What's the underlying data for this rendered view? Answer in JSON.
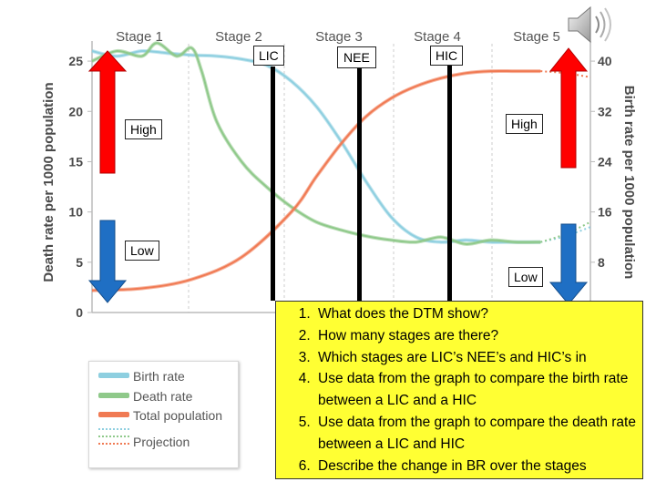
{
  "chart_data": {
    "type": "line",
    "stages": [
      "Stage 1",
      "Stage 2",
      "Stage 3",
      "Stage 4",
      "Stage 5"
    ],
    "left_axis": {
      "title": "Death rate per 1000 population",
      "ticks": [
        0,
        5,
        10,
        15,
        20,
        25
      ],
      "range": [
        0,
        27
      ]
    },
    "right_axis": {
      "title": "Birth rate per 1000 population",
      "ticks": [
        8,
        16,
        24,
        32,
        40
      ],
      "range": [
        0,
        43.2
      ]
    },
    "x_range": [
      0,
      100
    ],
    "series": [
      {
        "name": "Birth rate",
        "color": "#8ecfe0",
        "axis": "left",
        "x": [
          0,
          5,
          10,
          15,
          20,
          25,
          30,
          35,
          40,
          45,
          50,
          55,
          60,
          65,
          70,
          75,
          80,
          85,
          90
        ],
        "y": [
          26,
          25.5,
          26,
          25.8,
          25.6,
          25.5,
          25.2,
          24.6,
          23.0,
          20.5,
          17.0,
          13.0,
          9.5,
          7.5,
          7.0,
          7.2,
          7.0,
          7.0,
          7.0
        ]
      },
      {
        "name": "Death rate",
        "color": "#8fc98a",
        "axis": "left",
        "x": [
          0,
          5,
          10,
          13,
          17,
          20,
          22,
          25,
          30,
          35,
          40,
          45,
          50,
          55,
          60,
          65,
          70,
          75,
          80,
          85,
          90
        ],
        "y": [
          25,
          26,
          25.5,
          26.8,
          25.5,
          26.3,
          24.0,
          19.0,
          15.0,
          12.5,
          10.5,
          9.0,
          8.2,
          7.6,
          7.2,
          7.0,
          7.5,
          6.8,
          7.2,
          7.0,
          7.0
        ]
      },
      {
        "name": "Total population",
        "color": "#f07a53",
        "axis": "left",
        "x": [
          0,
          10,
          20,
          30,
          40,
          45,
          50,
          55,
          60,
          65,
          70,
          75,
          80,
          85,
          90
        ],
        "y": [
          2.2,
          2.4,
          3.3,
          5.5,
          10.0,
          13.5,
          16.8,
          19.5,
          21.3,
          22.5,
          23.3,
          23.8,
          24.0,
          24.0,
          24.0
        ]
      }
    ],
    "projection": {
      "x": [
        90,
        95,
        100
      ],
      "birth_rate": [
        7.0,
        7.6,
        8.5
      ],
      "death_rate": [
        7.0,
        7.8,
        9.0
      ],
      "total_population": [
        24.0,
        23.8,
        23.4
      ]
    },
    "legend": {
      "placement": "bottom-left",
      "items": [
        "Birth rate",
        "Death rate",
        "Total population",
        "Projection"
      ]
    }
  },
  "annotations": {
    "bar_labels": [
      "LIC",
      "NEE",
      "HIC"
    ],
    "high_left": "High",
    "low_left": "Low",
    "high_right": "High",
    "low_right": "Low"
  },
  "questions": [
    "What does the DTM show?",
    "How many stages are there?",
    "Which stages are LIC’s NEE’s and HIC’s in",
    "Use data from the graph to compare the birth rate between a LIC and a HIC",
    "Use data from the graph to compare the death rate between a LIC and HIC",
    "Describe the change in BR over the stages"
  ],
  "icons": {
    "speaker": "speaker-icon",
    "arrow_up": "arrow-up-icon",
    "arrow_down": "arrow-down-icon"
  },
  "colors": {
    "arrow_high": "#ff0000",
    "arrow_low": "#1f6fc4",
    "question_bg": "#ffff33"
  }
}
